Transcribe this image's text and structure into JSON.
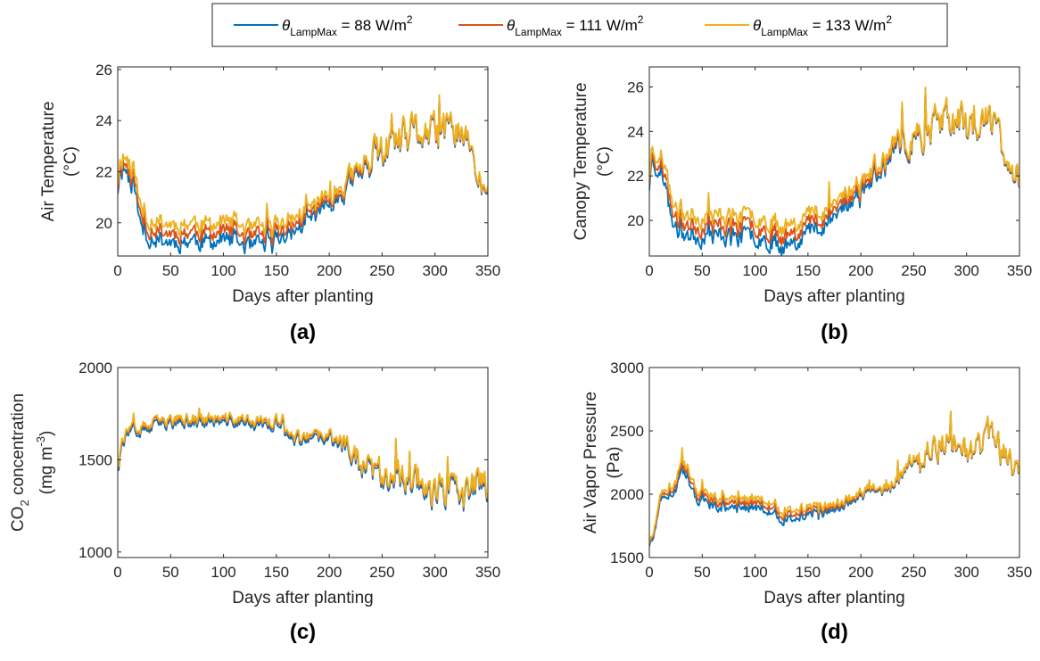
{
  "legend": {
    "entries": [
      {
        "sym": "θ",
        "sub": "LampMax",
        "rest": " = 88 W/m",
        "sup": "2",
        "color": "#0072BD"
      },
      {
        "sym": "θ",
        "sub": "LampMax",
        "rest": " = 111 W/m",
        "sup": "2",
        "color": "#D95319"
      },
      {
        "sym": "θ",
        "sub": "LampMax",
        "rest": " = 133 W/m",
        "sup": "2",
        "color": "#EDB120"
      }
    ]
  },
  "chart_data": [
    {
      "type": "line",
      "panel_label": "(a)",
      "xlabel": "Days after planting",
      "ylabel_lines": [
        "Air Temperature",
        "(°C)"
      ],
      "xlim": [
        0,
        350
      ],
      "ylim": [
        18.7,
        26.1
      ],
      "xticks": [
        0,
        50,
        100,
        150,
        200,
        250,
        300,
        350
      ],
      "yticks": [
        20,
        22,
        24,
        26
      ],
      "anchors": {
        "x": [
          0,
          3,
          8,
          12,
          16,
          20,
          25,
          30,
          35,
          40,
          50,
          60,
          70,
          80,
          90,
          100,
          110,
          120,
          125,
          130,
          140,
          150,
          160,
          170,
          180,
          190,
          200,
          210,
          220,
          230,
          240,
          250,
          260,
          270,
          280,
          290,
          300,
          310,
          320,
          325,
          330,
          335,
          340,
          345,
          350
        ],
        "base": [
          21.5,
          22.5,
          22.3,
          22.0,
          21.8,
          20.5,
          19.9,
          19.8,
          19.8,
          19.7,
          19.6,
          19.6,
          19.7,
          19.6,
          19.6,
          19.7,
          19.6,
          19.5,
          19.3,
          19.4,
          19.5,
          19.7,
          19.8,
          20.0,
          20.3,
          20.6,
          21.0,
          21.2,
          21.6,
          22.0,
          22.5,
          22.8,
          23.0,
          23.2,
          23.5,
          23.5,
          23.4,
          23.5,
          23.7,
          23.6,
          23.2,
          22.5,
          21.8,
          21.3,
          21.2
        ],
        "amp": [
          0.8,
          0.9,
          0.9,
          0.8,
          0.7,
          0.5,
          0.6,
          0.6,
          0.6,
          0.6,
          0.6,
          0.6,
          0.6,
          0.6,
          0.6,
          0.6,
          0.6,
          0.6,
          0.6,
          0.6,
          0.6,
          0.6,
          0.6,
          0.6,
          0.6,
          0.6,
          0.6,
          0.7,
          0.8,
          0.9,
          1.0,
          1.0,
          1.1,
          1.2,
          1.3,
          1.2,
          1.2,
          1.1,
          1.0,
          1.0,
          1.0,
          0.9,
          0.7,
          0.6,
          0.5
        ]
      },
      "series_offsets": [
        {
          "name": "θLampMax = 88 W/m2",
          "offset": [
            [
              0,
              -0.15
            ],
            [
              20,
              -0.35
            ],
            [
              130,
              -0.35
            ],
            [
              215,
              -0.15
            ],
            [
              260,
              -0.05
            ],
            [
              350,
              -0.05
            ]
          ]
        },
        {
          "name": "θLampMax = 111 W/m2",
          "offset": [
            [
              0,
              0.0
            ],
            [
              350,
              0.0
            ]
          ]
        },
        {
          "name": "θLampMax = 133 W/m2",
          "offset": [
            [
              0,
              0.2
            ],
            [
              20,
              0.35
            ],
            [
              130,
              0.35
            ],
            [
              215,
              0.15
            ],
            [
              260,
              0.05
            ],
            [
              350,
              0.05
            ]
          ]
        }
      ],
      "seed": 11
    },
    {
      "type": "line",
      "panel_label": "(b)",
      "xlabel": "Days after planting",
      "ylabel_lines": [
        "Canopy Temperature",
        "(°C)"
      ],
      "xlim": [
        0,
        350
      ],
      "ylim": [
        18.4,
        26.9
      ],
      "xticks": [
        0,
        50,
        100,
        150,
        200,
        250,
        300,
        350
      ],
      "yticks": [
        20,
        22,
        24,
        26
      ],
      "anchors": {
        "x": [
          0,
          3,
          8,
          12,
          16,
          20,
          25,
          30,
          35,
          40,
          50,
          60,
          70,
          80,
          90,
          100,
          110,
          120,
          125,
          130,
          140,
          150,
          160,
          170,
          180,
          190,
          200,
          210,
          220,
          230,
          240,
          250,
          260,
          270,
          280,
          290,
          300,
          310,
          320,
          325,
          330,
          335,
          340,
          345,
          350
        ],
        "base": [
          21.8,
          23.2,
          22.8,
          22.4,
          22.0,
          20.6,
          20.0,
          19.9,
          19.9,
          19.8,
          19.7,
          19.7,
          19.8,
          19.7,
          19.7,
          19.8,
          19.6,
          19.5,
          19.3,
          19.4,
          19.6,
          19.9,
          20.1,
          20.3,
          20.7,
          21.1,
          21.6,
          22.0,
          22.5,
          22.9,
          23.4,
          23.7,
          24.0,
          24.3,
          24.6,
          24.5,
          24.3,
          24.3,
          24.5,
          24.4,
          24.0,
          23.2,
          22.3,
          21.8,
          21.7
        ],
        "amp": [
          0.9,
          1.0,
          1.0,
          0.9,
          0.8,
          0.6,
          0.7,
          0.7,
          0.7,
          0.7,
          0.7,
          0.7,
          0.7,
          0.7,
          0.7,
          0.7,
          0.7,
          0.7,
          0.7,
          0.7,
          0.7,
          0.7,
          0.7,
          0.7,
          0.7,
          0.7,
          0.7,
          0.8,
          0.9,
          1.0,
          1.1,
          1.1,
          1.2,
          1.3,
          1.4,
          1.3,
          1.3,
          1.2,
          1.1,
          1.1,
          1.1,
          1.0,
          0.8,
          0.7,
          0.6
        ]
      },
      "series_offsets": [
        {
          "name": "θLampMax = 88 W/m2",
          "offset": [
            [
              0,
              -0.2
            ],
            [
              20,
              -0.45
            ],
            [
              130,
              -0.45
            ],
            [
              215,
              -0.2
            ],
            [
              260,
              -0.05
            ],
            [
              350,
              -0.05
            ]
          ]
        },
        {
          "name": "θLampMax = 111 W/m2",
          "offset": [
            [
              0,
              0.0
            ],
            [
              350,
              0.0
            ]
          ]
        },
        {
          "name": "θLampMax = 133 W/m2",
          "offset": [
            [
              0,
              0.25
            ],
            [
              20,
              0.45
            ],
            [
              130,
              0.45
            ],
            [
              215,
              0.2
            ],
            [
              260,
              0.05
            ],
            [
              350,
              0.05
            ]
          ]
        }
      ],
      "seed": 23
    },
    {
      "type": "line",
      "panel_label": "(c)",
      "xlabel": "Days after planting",
      "ylabel_lines": [
        "CO_2 concentration",
        "(mg m^-3)"
      ],
      "xlim": [
        0,
        350
      ],
      "ylim": [
        970,
        2000
      ],
      "xticks": [
        0,
        50,
        100,
        150,
        200,
        250,
        300,
        350
      ],
      "yticks": [
        1000,
        1500,
        2000
      ],
      "anchors": {
        "x": [
          0,
          5,
          10,
          20,
          30,
          40,
          50,
          60,
          70,
          80,
          90,
          100,
          110,
          120,
          130,
          140,
          150,
          155,
          160,
          170,
          180,
          190,
          200,
          210,
          220,
          230,
          240,
          250,
          260,
          270,
          280,
          290,
          300,
          310,
          320,
          330,
          340,
          350
        ],
        "base": [
          1520,
          1620,
          1650,
          1660,
          1680,
          1700,
          1710,
          1710,
          1720,
          1710,
          1720,
          1710,
          1720,
          1710,
          1700,
          1710,
          1700,
          1720,
          1620,
          1620,
          1610,
          1620,
          1620,
          1600,
          1560,
          1480,
          1440,
          1440,
          1420,
          1400,
          1420,
          1380,
          1320,
          1330,
          1310,
          1300,
          1380,
          1370
        ],
        "amp": [
          80,
          60,
          50,
          50,
          50,
          50,
          50,
          50,
          50,
          50,
          50,
          50,
          50,
          50,
          50,
          50,
          60,
          80,
          60,
          60,
          60,
          60,
          60,
          70,
          80,
          110,
          120,
          120,
          130,
          130,
          130,
          140,
          150,
          150,
          150,
          160,
          140,
          130
        ]
      },
      "series_offsets": [
        {
          "name": "θLampMax = 88 W/m2",
          "offset": [
            [
              0,
              -15
            ],
            [
              350,
              -15
            ]
          ]
        },
        {
          "name": "θLampMax = 111 W/m2",
          "offset": [
            [
              0,
              0
            ],
            [
              350,
              0
            ]
          ]
        },
        {
          "name": "θLampMax = 133 W/m2",
          "offset": [
            [
              0,
              8
            ],
            [
              350,
              8
            ]
          ]
        }
      ],
      "seed": 37
    },
    {
      "type": "line",
      "panel_label": "(d)",
      "xlabel": "Days after planting",
      "ylabel_lines": [
        "Air Vapor Pressure",
        "(Pa)"
      ],
      "xlim": [
        0,
        350
      ],
      "ylim": [
        1500,
        3000
      ],
      "xticks": [
        0,
        50,
        100,
        150,
        200,
        250,
        300,
        350
      ],
      "yticks": [
        1500,
        2000,
        2500,
        3000
      ],
      "anchors": {
        "x": [
          0,
          5,
          10,
          15,
          20,
          25,
          30,
          35,
          40,
          45,
          50,
          60,
          70,
          80,
          90,
          100,
          110,
          120,
          125,
          130,
          140,
          150,
          160,
          170,
          180,
          190,
          200,
          210,
          220,
          230,
          240,
          250,
          260,
          270,
          280,
          290,
          300,
          310,
          320,
          325,
          330,
          335,
          340,
          345,
          350
        ],
        "base": [
          1620,
          1700,
          1950,
          2000,
          2020,
          2100,
          2250,
          2200,
          2050,
          2000,
          1980,
          1950,
          1940,
          1920,
          1930,
          1940,
          1920,
          1900,
          1800,
          1830,
          1850,
          1870,
          1880,
          1900,
          1930,
          1960,
          2000,
          2030,
          2050,
          2080,
          2130,
          2250,
          2300,
          2350,
          2400,
          2400,
          2350,
          2380,
          2450,
          2420,
          2380,
          2300,
          2250,
          2200,
          2180
        ],
        "amp": [
          60,
          70,
          60,
          50,
          60,
          80,
          100,
          90,
          70,
          60,
          60,
          60,
          60,
          60,
          60,
          60,
          60,
          60,
          60,
          60,
          60,
          70,
          70,
          70,
          70,
          70,
          70,
          80,
          90,
          110,
          130,
          160,
          180,
          190,
          200,
          210,
          210,
          210,
          200,
          200,
          200,
          180,
          160,
          150,
          140
        ]
      },
      "series_offsets": [
        {
          "name": "θLampMax = 88 W/m2",
          "offset": [
            [
              0,
              -15
            ],
            [
              30,
              -40
            ],
            [
              130,
              -40
            ],
            [
              210,
              -10
            ],
            [
              350,
              -5
            ]
          ]
        },
        {
          "name": "θLampMax = 111 W/m2",
          "offset": [
            [
              0,
              0
            ],
            [
              350,
              0
            ]
          ]
        },
        {
          "name": "θLampMax = 133 W/m2",
          "offset": [
            [
              0,
              15
            ],
            [
              30,
              35
            ],
            [
              130,
              35
            ],
            [
              210,
              10
            ],
            [
              350,
              5
            ]
          ]
        }
      ],
      "seed": 51
    }
  ]
}
